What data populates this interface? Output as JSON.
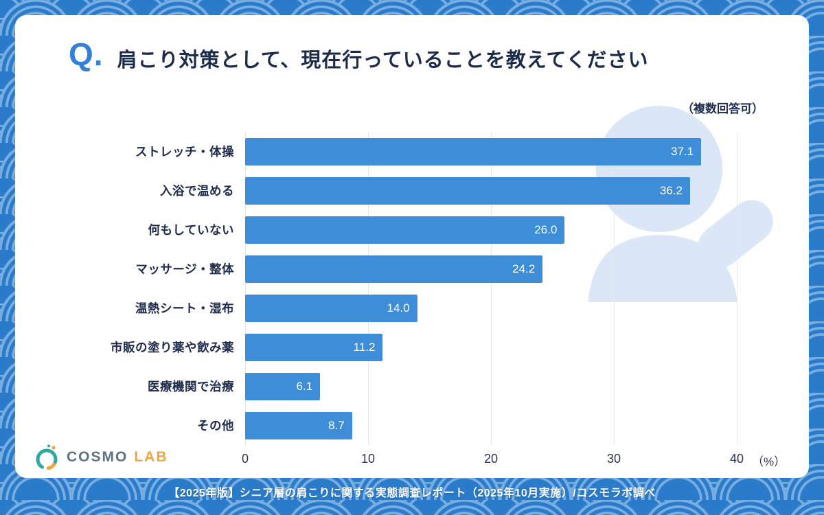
{
  "header": {
    "q_label": "Q.",
    "title": "肩こり対策として、現在行っていることを教えてください"
  },
  "chart_data": {
    "type": "bar",
    "orientation": "horizontal",
    "note": "（複数回答可）",
    "categories": [
      "ストレッチ・体操",
      "入浴で温める",
      "何もしていない",
      "マッサージ・整体",
      "温熱シート・湿布",
      "市販の塗り薬や飲み薬",
      "医療機関で治療",
      "その他"
    ],
    "values": [
      37.1,
      36.2,
      26.0,
      24.2,
      14.0,
      11.2,
      6.1,
      8.7
    ],
    "xlim": [
      0,
      40
    ],
    "ticks": [
      0,
      10,
      20,
      30,
      40
    ],
    "unit_label": "（%）",
    "grid": true,
    "legend": "none",
    "bar_color": "#3e8dd8",
    "value_label_color": "#ffffff"
  },
  "logo": {
    "part1": "COSMO",
    "part2": "LAB"
  },
  "footer": {
    "text": "【2025年版】シニア層の肩こりに関する実態調査レポート（2025年10月実施）/コスモラボ調べ"
  },
  "colors": {
    "background": "#2b7bcb",
    "card": "#ffffff",
    "bar": "#3e8dd8",
    "title": "#1c2b4a",
    "q_accent": "#3181d8",
    "watermark": "#dbe7f6"
  }
}
